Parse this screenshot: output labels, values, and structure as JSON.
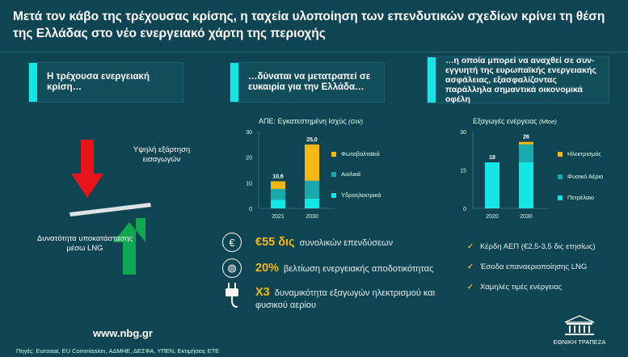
{
  "title": "Μετά τον κάβο της τρέχουσας κρίσης, η ταχεία υλοποίηση των επενδυτικών σχεδίων κρίνει τη θέση της Ελλάδας στο νέο ενεργειακό χάρτη της περιοχής",
  "boxes": [
    {
      "text": "Η τρέχουσα ενεργειακή κρίση…"
    },
    {
      "text": "…δύναται να μετατραπεί σε ευκαιρία για την Ελλάδα…"
    },
    {
      "text": "…η οποία μπορεί να αναχθεί σε συν-εγγυητή της ευρωπαϊκής ενεργειακής ασφάλειας, εξασφαλίζοντας παράλληλα σημαντικά οικονομικά οφέλη"
    }
  ],
  "balance": {
    "high_label": "Υψηλή εξάρτηση εισαγωγών",
    "low_label": "Δυνατότητα υποκατάστασης μέσω LNG"
  },
  "chart_data": [
    {
      "type": "bar",
      "title": "ΑΠΕ: Εγκατεστημένη Ισχύς",
      "unit": "(GW)",
      "categories": [
        "2021",
        "2030"
      ],
      "ylim": [
        0,
        30
      ],
      "yticks": [
        "30",
        "20",
        "10",
        "0"
      ],
      "series": [
        {
          "name": "Υδροηλεκτρικά",
          "color": "#14e6e6",
          "values": [
            3.4,
            3.8
          ]
        },
        {
          "name": "Αιολικά",
          "color": "#1aa9aa",
          "values": [
            4.2,
            7.0
          ]
        },
        {
          "name": "Φωτοβολταϊκά",
          "color": "#f5b712",
          "values": [
            3.0,
            14.2
          ]
        }
      ],
      "totals": [
        "10,6",
        "25,0"
      ]
    },
    {
      "type": "bar",
      "title": "Εξαγωγές ενέργειας",
      "unit": "(Mtoe)",
      "categories": [
        "2020",
        "2030"
      ],
      "ylim": [
        0,
        30
      ],
      "yticks": [
        "30",
        "15",
        "0"
      ],
      "series": [
        {
          "name": "Πετρέλαιο",
          "color": "#14e6e6",
          "values": [
            18,
            18
          ]
        },
        {
          "name": "Φυσικό Αέριο",
          "color": "#1aa9aa",
          "values": [
            0,
            7
          ]
        },
        {
          "name": "Ηλεκτρισμός",
          "color": "#f5b712",
          "values": [
            0,
            1
          ]
        }
      ],
      "totals": [
        "18",
        "26"
      ]
    }
  ],
  "stats": [
    {
      "icon": "euro-coins-icon",
      "value": "€55 δις",
      "text": "συνολικών επενδύσεων"
    },
    {
      "icon": "globe-efficiency-icon",
      "value": "20%",
      "text": "βελτίωση ενεργειακής αποδοτικότητας"
    },
    {
      "icon": "plug-icon",
      "value": "Χ3",
      "text": "δυναμικότητα εξαγωγών ηλεκτρισμού και",
      "text2": "φυσικού αερίου"
    }
  ],
  "benefits": [
    "Κέρδη ΑΕΠ (€2,5-3,5 δις ετησίως)",
    "Έσοδα επαναεριοποίησης LNG",
    "Χαμηλές τιμές ενέργειας"
  ],
  "footer": {
    "url": "www.nbg.gr",
    "sources": "Πηγές: Eurostat, EU Commission, ΑΔΜΗΕ, ΔΕΣΦΑ, ΥΠΕΝ, Εκτιμήσεις ΕΤΕ",
    "bank": "ΕΘΝΙΚΗ ΤΡΑΠΕΖΑ"
  }
}
